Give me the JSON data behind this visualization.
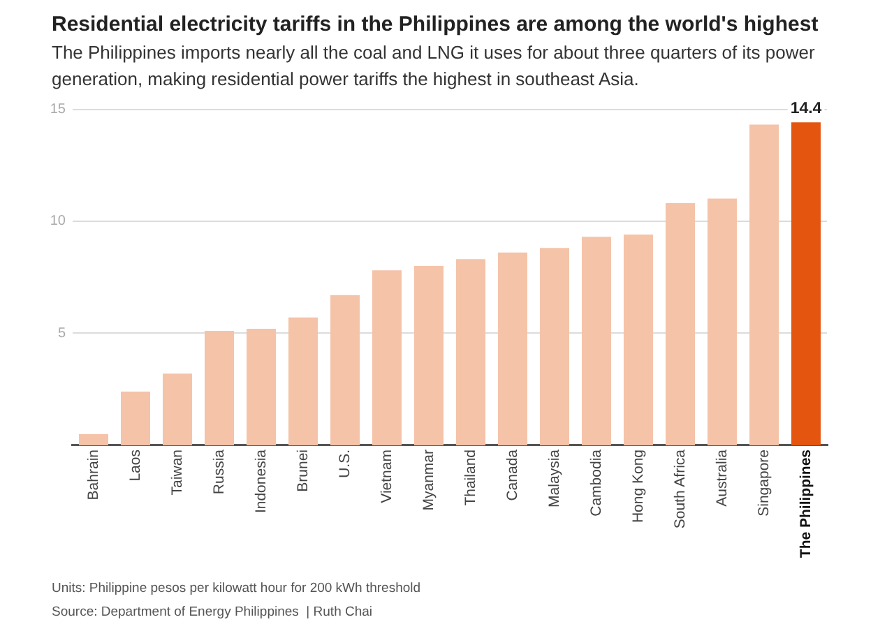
{
  "chart_data": {
    "type": "bar",
    "title": "Residential electricity tariffs in the Philippines are among the world's highest",
    "subtitle": "The Philippines imports nearly all the coal and LNG it uses for about three quarters of its power generation, making residential power tariffs the highest in southeast Asia.",
    "categories": [
      "Bahrain",
      "Laos",
      "Taiwan",
      "Russia",
      "Indonesia",
      "Brunei",
      "U.S.",
      "Vietnam",
      "Myanmar",
      "Thailand",
      "Canada",
      "Malaysia",
      "Cambodia",
      "Hong Kong",
      "South Africa",
      "Australia",
      "Singapore",
      "The Philippines"
    ],
    "values": [
      0.5,
      2.4,
      3.2,
      5.1,
      5.2,
      5.7,
      6.7,
      7.8,
      8.0,
      8.3,
      8.6,
      8.8,
      9.3,
      9.4,
      10.8,
      11.0,
      14.3,
      14.4
    ],
    "colors": [
      "#f5c3a8",
      "#f5c3a8",
      "#f5c3a8",
      "#f5c3a8",
      "#f5c3a8",
      "#f5c3a8",
      "#f5c3a8",
      "#f5c3a8",
      "#f5c3a8",
      "#f5c3a8",
      "#f5c3a8",
      "#f5c3a8",
      "#f5c3a8",
      "#f5c3a8",
      "#f5c3a8",
      "#f5c3a8",
      "#f5c3a8",
      "#e4560f"
    ],
    "value_labels": [
      null,
      null,
      null,
      null,
      null,
      null,
      null,
      null,
      null,
      null,
      null,
      null,
      null,
      null,
      null,
      null,
      null,
      "14.4"
    ],
    "ylim": [
      0,
      15
    ],
    "yticks": [
      5,
      10,
      15
    ],
    "grid": "y",
    "annotations": [
      "Units: Philippine pesos per kilowatt hour for 200 kWh threshold",
      "Source: Department of Energy Philippines  | Ruth Chai"
    ]
  }
}
